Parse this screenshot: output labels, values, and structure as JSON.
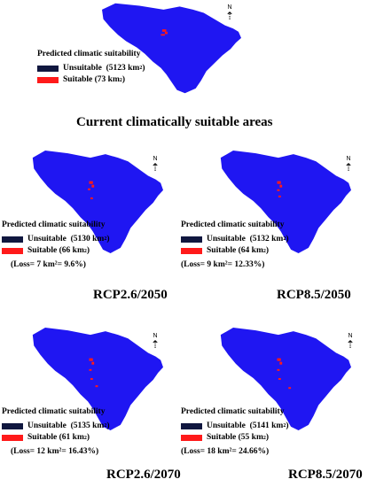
{
  "colors": {
    "region": "#1f16f2",
    "suitable": "#ff1a1a",
    "unsuitable": "#10173f",
    "background": "#ffffff"
  },
  "north_label": "N",
  "legend_title": "Predicted climatic suitability",
  "unsuitable_label": "Unsuitable",
  "suitable_label": "Suitable",
  "panels": [
    {
      "id": "current",
      "caption": "Current climatically suitable areas",
      "unsuitable_value": "(5123 km",
      "suitable_value": "(73 km",
      "loss": ""
    },
    {
      "id": "rcp26-2050",
      "caption": "RCP2.6/2050",
      "unsuitable_value": "(5130 km",
      "suitable_value": "(66 km",
      "loss": "(Loss= 7 km²= 9.6%)"
    },
    {
      "id": "rcp85-2050",
      "caption": "RCP8.5/2050",
      "unsuitable_value": "(5132 km",
      "suitable_value": "(64 km",
      "loss": "(Loss= 9 km²= 12.33%)"
    },
    {
      "id": "rcp26-2070",
      "caption": "RCP2.6/2070",
      "unsuitable_value": "(5135 km",
      "suitable_value": "(61 km",
      "loss": "(Loss= 12 km²= 16.43%)"
    },
    {
      "id": "rcp85-2070",
      "caption": "RCP8.5/2070",
      "unsuitable_value": "(5141 km",
      "suitable_value": "(55 km",
      "loss": "(Loss= 18 km²= 24.66%)"
    }
  ]
}
